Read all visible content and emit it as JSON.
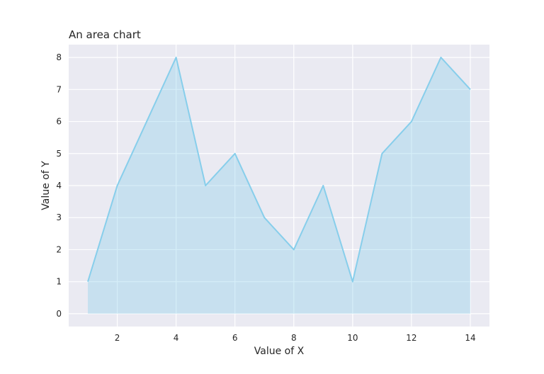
{
  "chart_data": {
    "type": "area",
    "title": "An area chart",
    "xlabel": "Value of X",
    "ylabel": "Value of Y",
    "x": [
      1,
      2,
      3,
      4,
      5,
      6,
      7,
      8,
      9,
      10,
      11,
      12,
      13,
      14
    ],
    "series": [
      {
        "values": [
          1,
          4,
          6,
          8,
          4,
          5,
          3,
          2,
          4,
          1,
          5,
          6,
          8,
          7
        ]
      }
    ],
    "xlim": [
      0.35,
      14.65
    ],
    "ylim": [
      -0.4,
      8.4
    ],
    "xticks": [
      2,
      4,
      6,
      8,
      10,
      12,
      14
    ],
    "yticks": [
      0,
      1,
      2,
      3,
      4,
      5,
      6,
      7,
      8
    ],
    "grid": true,
    "legend": "none",
    "colors": {
      "background": "#eaeaf2",
      "grid": "#ffffff",
      "line": "#87ceeb",
      "fill": "#87ceeb"
    }
  }
}
